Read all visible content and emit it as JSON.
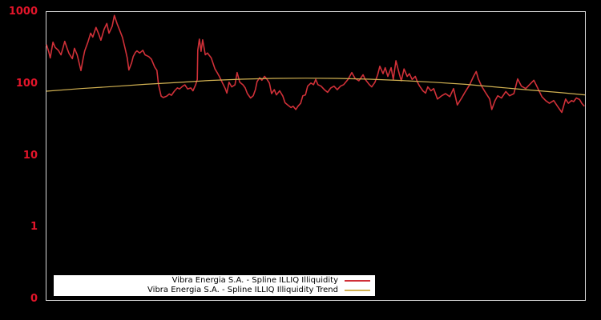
{
  "figure": {
    "background_color": "#000000",
    "frame_color": "#d9d9d9",
    "tick_label_color": "#e3152a"
  },
  "legend": {
    "background": "#ffffff",
    "entries": [
      {
        "label": "Vibra Energia S.A. - Spline ILLIQ Illiquidity",
        "color": "#d03038"
      },
      {
        "label": "Vibra Energia S.A. - Spline ILLIQ Illiquidity Trend",
        "color": "#d1b152"
      }
    ]
  },
  "chart_data": {
    "type": "line",
    "title": "",
    "xlabel": "",
    "ylabel": "",
    "y_scale": "log",
    "y_range": [
      0.1,
      1030
    ],
    "grid": false,
    "x_tick_labels": [],
    "y_ticks": [
      {
        "label": "1000",
        "value": 1000
      },
      {
        "label": "100",
        "value": 100
      },
      {
        "label": "10",
        "value": 10
      },
      {
        "label": "1",
        "value": 1
      },
      {
        "label": "0",
        "value": 0.1
      }
    ],
    "legend_position": "bottom-left-inside",
    "x_axis_note": "time axis, no tick labels visible; x given as fraction 0-1 of plot width",
    "series": [
      {
        "name": "Vibra Energia S.A. - Spline ILLIQ Illiquidity",
        "color": "#d03038",
        "width": 1.6,
        "points": [
          [
            0,
            360
          ],
          [
            0.004,
            290
          ],
          [
            0.007,
            235
          ],
          [
            0.012,
            390
          ],
          [
            0.016,
            330
          ],
          [
            0.022,
            300
          ],
          [
            0.027,
            260
          ],
          [
            0.031,
            330
          ],
          [
            0.034,
            400
          ],
          [
            0.039,
            310
          ],
          [
            0.042,
            270
          ],
          [
            0.048,
            230
          ],
          [
            0.052,
            320
          ],
          [
            0.057,
            260
          ],
          [
            0.06,
            210
          ],
          [
            0.064,
            157
          ],
          [
            0.068,
            230
          ],
          [
            0.071,
            295
          ],
          [
            0.077,
            390
          ],
          [
            0.082,
            520
          ],
          [
            0.086,
            460
          ],
          [
            0.092,
            625
          ],
          [
            0.097,
            505
          ],
          [
            0.101,
            415
          ],
          [
            0.107,
            590
          ],
          [
            0.112,
            710
          ],
          [
            0.116,
            520
          ],
          [
            0.122,
            650
          ],
          [
            0.126,
            920
          ],
          [
            0.131,
            710
          ],
          [
            0.137,
            545
          ],
          [
            0.141,
            455
          ],
          [
            0.146,
            320
          ],
          [
            0.15,
            235
          ],
          [
            0.153,
            160
          ],
          [
            0.158,
            200
          ],
          [
            0.161,
            245
          ],
          [
            0.165,
            280
          ],
          [
            0.168,
            295
          ],
          [
            0.173,
            275
          ],
          [
            0.179,
            300
          ],
          [
            0.183,
            260
          ],
          [
            0.19,
            245
          ],
          [
            0.195,
            225
          ],
          [
            0.201,
            175
          ],
          [
            0.205,
            158
          ],
          [
            0.208,
            100
          ],
          [
            0.213,
            69
          ],
          [
            0.217,
            66
          ],
          [
            0.223,
            69
          ],
          [
            0.228,
            74
          ],
          [
            0.232,
            71
          ],
          [
            0.238,
            82
          ],
          [
            0.243,
            90
          ],
          [
            0.247,
            87
          ],
          [
            0.253,
            95
          ],
          [
            0.257,
            99
          ],
          [
            0.262,
            87
          ],
          [
            0.268,
            90
          ],
          [
            0.272,
            82
          ],
          [
            0.277,
            99
          ],
          [
            0.28,
            118
          ],
          [
            0.281,
            300
          ],
          [
            0.284,
            430
          ],
          [
            0.287,
            290
          ],
          [
            0.29,
            420
          ],
          [
            0.295,
            260
          ],
          [
            0.299,
            275
          ],
          [
            0.306,
            235
          ],
          [
            0.313,
            165
          ],
          [
            0.317,
            147
          ],
          [
            0.321,
            130
          ],
          [
            0.327,
            105
          ],
          [
            0.332,
            88
          ],
          [
            0.335,
            76
          ],
          [
            0.339,
            108
          ],
          [
            0.344,
            93
          ],
          [
            0.35,
            99
          ],
          [
            0.354,
            147
          ],
          [
            0.359,
            108
          ],
          [
            0.365,
            99
          ],
          [
            0.369,
            90
          ],
          [
            0.373,
            75
          ],
          [
            0.379,
            65
          ],
          [
            0.384,
            70
          ],
          [
            0.388,
            85
          ],
          [
            0.391,
            110
          ],
          [
            0.396,
            125
          ],
          [
            0.4,
            115
          ],
          [
            0.405,
            130
          ],
          [
            0.409,
            120
          ],
          [
            0.414,
            105
          ],
          [
            0.418,
            75
          ],
          [
            0.423,
            85
          ],
          [
            0.427,
            72
          ],
          [
            0.433,
            82
          ],
          [
            0.439,
            69
          ],
          [
            0.443,
            56
          ],
          [
            0.448,
            52
          ],
          [
            0.454,
            48
          ],
          [
            0.458,
            50
          ],
          [
            0.463,
            45
          ],
          [
            0.467,
            50
          ],
          [
            0.472,
            55
          ],
          [
            0.476,
            70
          ],
          [
            0.481,
            72
          ],
          [
            0.485,
            95
          ],
          [
            0.491,
            105
          ],
          [
            0.496,
            100
          ],
          [
            0.5,
            118
          ],
          [
            0.504,
            100
          ],
          [
            0.51,
            95
          ],
          [
            0.516,
            85
          ],
          [
            0.522,
            78
          ],
          [
            0.528,
            90
          ],
          [
            0.534,
            95
          ],
          [
            0.54,
            85
          ],
          [
            0.546,
            95
          ],
          [
            0.552,
            100
          ],
          [
            0.56,
            118
          ],
          [
            0.567,
            147
          ],
          [
            0.573,
            122
          ],
          [
            0.58,
            113
          ],
          [
            0.588,
            137
          ],
          [
            0.592,
            118
          ],
          [
            0.6,
            99
          ],
          [
            0.604,
            93
          ],
          [
            0.61,
            108
          ],
          [
            0.615,
            137
          ],
          [
            0.619,
            180
          ],
          [
            0.625,
            142
          ],
          [
            0.629,
            172
          ],
          [
            0.634,
            130
          ],
          [
            0.64,
            172
          ],
          [
            0.644,
            118
          ],
          [
            0.649,
            215
          ],
          [
            0.655,
            142
          ],
          [
            0.659,
            113
          ],
          [
            0.664,
            165
          ],
          [
            0.67,
            130
          ],
          [
            0.674,
            142
          ],
          [
            0.679,
            118
          ],
          [
            0.685,
            130
          ],
          [
            0.689,
            108
          ],
          [
            0.693,
            95
          ],
          [
            0.699,
            82
          ],
          [
            0.704,
            76
          ],
          [
            0.708,
            93
          ],
          [
            0.714,
            82
          ],
          [
            0.719,
            88
          ],
          [
            0.726,
            63
          ],
          [
            0.734,
            70
          ],
          [
            0.741,
            75
          ],
          [
            0.749,
            68
          ],
          [
            0.756,
            88
          ],
          [
            0.763,
            52
          ],
          [
            0.771,
            65
          ],
          [
            0.778,
            80
          ],
          [
            0.786,
            100
          ],
          [
            0.793,
            130
          ],
          [
            0.798,
            152
          ],
          [
            0.802,
            120
          ],
          [
            0.808,
            95
          ],
          [
            0.815,
            78
          ],
          [
            0.823,
            63
          ],
          [
            0.827,
            45
          ],
          [
            0.833,
            60
          ],
          [
            0.838,
            70
          ],
          [
            0.845,
            65
          ],
          [
            0.853,
            80
          ],
          [
            0.86,
            70
          ],
          [
            0.868,
            75
          ],
          [
            0.875,
            120
          ],
          [
            0.882,
            95
          ],
          [
            0.89,
            88
          ],
          [
            0.897,
            100
          ],
          [
            0.905,
            115
          ],
          [
            0.912,
            90
          ],
          [
            0.92,
            68
          ],
          [
            0.927,
            60
          ],
          [
            0.934,
            55
          ],
          [
            0.942,
            60
          ],
          [
            0.949,
            50
          ],
          [
            0.957,
            41
          ],
          [
            0.964,
            63
          ],
          [
            0.969,
            55
          ],
          [
            0.975,
            60
          ],
          [
            0.979,
            58
          ],
          [
            0.984,
            65
          ],
          [
            0.99,
            62
          ],
          [
            0.994,
            55
          ],
          [
            0.999,
            50
          ]
        ]
      },
      {
        "name": "Vibra Energia S.A. - Spline ILLIQ Illiquidity Trend",
        "color": "#d1b152",
        "width": 1.2,
        "points": [
          [
            0,
            81
          ],
          [
            0.064,
            88
          ],
          [
            0.123,
            94
          ],
          [
            0.183,
            101
          ],
          [
            0.243,
            107
          ],
          [
            0.302,
            114
          ],
          [
            0.362,
            119
          ],
          [
            0.421,
            122
          ],
          [
            0.481,
            123
          ],
          [
            0.54,
            122
          ],
          [
            0.6,
            119
          ],
          [
            0.659,
            114
          ],
          [
            0.719,
            108
          ],
          [
            0.778,
            101
          ],
          [
            0.838,
            92
          ],
          [
            0.897,
            84
          ],
          [
            0.957,
            77
          ],
          [
            1,
            72
          ]
        ]
      }
    ]
  }
}
